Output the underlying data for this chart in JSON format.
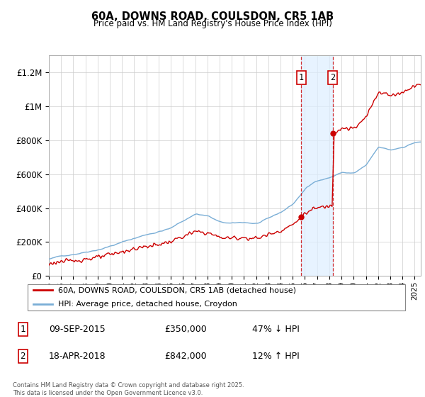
{
  "title": "60A, DOWNS ROAD, COULSDON, CR5 1AB",
  "subtitle": "Price paid vs. HM Land Registry's House Price Index (HPI)",
  "background_color": "#ffffff",
  "hpi_color": "#7aaed6",
  "price_color": "#cc0000",
  "shaded_region_color": "#ddeeff",
  "transaction1": {
    "date": "09-SEP-2015",
    "price": 350000,
    "pct": "47%",
    "dir": "↓",
    "year": 2015.69
  },
  "transaction2": {
    "date": "18-APR-2018",
    "price": 842000,
    "pct": "12%",
    "dir": "↑",
    "year": 2018.29
  },
  "legend_label_price": "60A, DOWNS ROAD, COULSDON, CR5 1AB (detached house)",
  "legend_label_hpi": "HPI: Average price, detached house, Croydon",
  "footnote": "Contains HM Land Registry data © Crown copyright and database right 2025.\nThis data is licensed under the Open Government Licence v3.0.",
  "ylim": [
    0,
    1300000
  ],
  "xlim_start": 1995.0,
  "xlim_end": 2025.5,
  "yticks": [
    0,
    200000,
    400000,
    600000,
    800000,
    1000000,
    1200000
  ],
  "ytick_labels": [
    "£0",
    "£200K",
    "£400K",
    "£600K",
    "£800K",
    "£1M",
    "£1.2M"
  ],
  "xticks": [
    1995,
    1996,
    1997,
    1998,
    1999,
    2000,
    2001,
    2002,
    2003,
    2004,
    2005,
    2006,
    2007,
    2008,
    2009,
    2010,
    2011,
    2012,
    2013,
    2014,
    2015,
    2016,
    2017,
    2018,
    2019,
    2020,
    2021,
    2022,
    2023,
    2024,
    2025
  ]
}
